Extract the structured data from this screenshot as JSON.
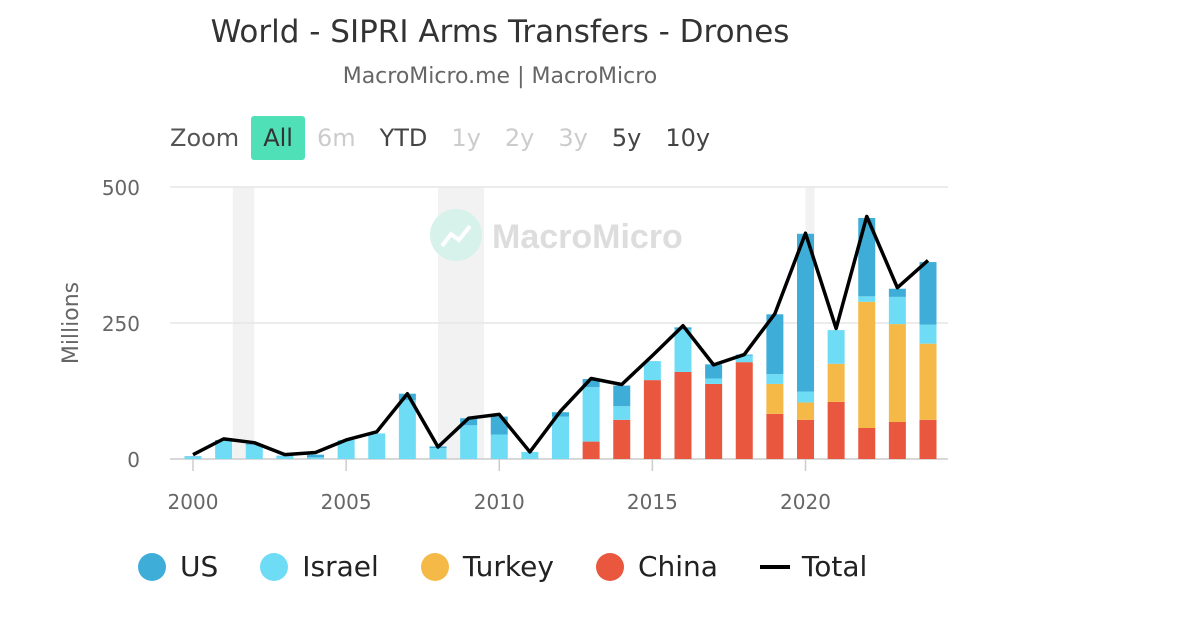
{
  "header": {
    "title": "World - SIPRI Arms Transfers - Drones",
    "subtitle": "MacroMicro.me | MacroMicro"
  },
  "zoom": {
    "label": "Zoom",
    "buttons": [
      {
        "label": "All",
        "state": "active"
      },
      {
        "label": "6m",
        "state": "disabled"
      },
      {
        "label": "YTD",
        "state": "enabled"
      },
      {
        "label": "1y",
        "state": "disabled"
      },
      {
        "label": "2y",
        "state": "disabled"
      },
      {
        "label": "3y",
        "state": "disabled"
      },
      {
        "label": "5y",
        "state": "enabled"
      },
      {
        "label": "10y",
        "state": "enabled"
      }
    ]
  },
  "watermark": "MacroMicro",
  "legend": [
    {
      "label": "US",
      "color": "#3eaed9",
      "kind": "dot"
    },
    {
      "label": "Israel",
      "color": "#6fdcf5",
      "kind": "dot"
    },
    {
      "label": "Turkey",
      "color": "#f5b947",
      "kind": "dot"
    },
    {
      "label": "China",
      "color": "#e8573e",
      "kind": "dot"
    },
    {
      "label": "Total",
      "color": "#000000",
      "kind": "line"
    }
  ],
  "chart_data": {
    "type": "bar",
    "stacked": true,
    "ylabel": "Millions",
    "ylim": [
      0,
      500
    ],
    "yticks": [
      0,
      250,
      500
    ],
    "xticks": [
      2000,
      2005,
      2010,
      2015,
      2020
    ],
    "xlim": [
      1999.8,
      2024.5
    ],
    "grid": true,
    "legend_position": "bottom",
    "x": [
      2000,
      2001,
      2002,
      2003,
      2004,
      2005,
      2006,
      2007,
      2008,
      2009,
      2010,
      2011,
      2012,
      2013,
      2014,
      2015,
      2016,
      2017,
      2018,
      2019,
      2020,
      2021,
      2022,
      2023,
      2024
    ],
    "shaded_periods": [
      [
        2001.3,
        2002.0
      ],
      [
        2008.0,
        2009.5
      ],
      [
        2020.0,
        2020.3
      ]
    ],
    "series": [
      {
        "name": "China",
        "color": "#e8573e",
        "values": [
          0,
          0,
          0,
          0,
          0,
          0,
          0,
          0,
          0,
          0,
          0,
          0,
          0,
          32,
          72,
          145,
          160,
          138,
          178,
          83,
          72,
          105,
          57,
          68,
          72
        ]
      },
      {
        "name": "Turkey",
        "color": "#f5b947",
        "values": [
          0,
          0,
          0,
          0,
          0,
          0,
          0,
          0,
          0,
          0,
          0,
          0,
          0,
          0,
          0,
          0,
          0,
          0,
          0,
          55,
          32,
          70,
          232,
          180,
          140
        ]
      },
      {
        "name": "Israel",
        "color": "#6fdcf5",
        "values": [
          4,
          33,
          26,
          5,
          3,
          35,
          47,
          108,
          20,
          62,
          45,
          13,
          78,
          100,
          25,
          35,
          78,
          10,
          12,
          18,
          20,
          62,
          10,
          50,
          35
        ]
      },
      {
        "name": "US",
        "color": "#3eaed9",
        "values": [
          1,
          2,
          2,
          1,
          5,
          0,
          0,
          12,
          3,
          13,
          33,
          0,
          8,
          15,
          38,
          0,
          4,
          26,
          2,
          110,
          290,
          0,
          144,
          15,
          115
        ]
      },
      {
        "name": "Total",
        "color": "#000000",
        "kind": "line",
        "values": [
          8,
          37,
          30,
          8,
          12,
          35,
          50,
          120,
          22,
          75,
          82,
          13,
          88,
          148,
          137,
          190,
          245,
          173,
          192,
          267,
          415,
          240,
          446,
          315,
          365
        ]
      }
    ]
  }
}
